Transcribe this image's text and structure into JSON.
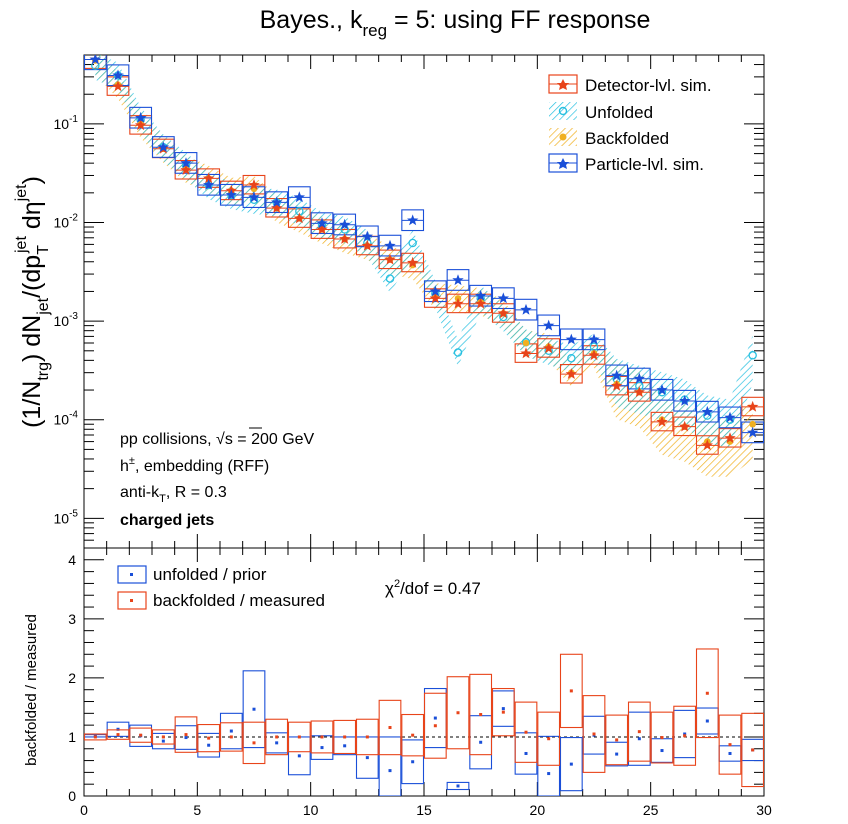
{
  "colors": {
    "detector": "#e8441a",
    "unfolded": "#28c0e0",
    "backfolded": "#f0b020",
    "particle": "#1a4fd8",
    "unf_ratio": "#1a4fd8",
    "back_ratio": "#e8441a"
  },
  "chart_data": [
    {
      "type": "scatter",
      "title": "Bayes., k_reg = 5: using FF response",
      "title_parts": {
        "pre": "Bayes., k",
        "sub": "reg",
        "post": " = 5: using FF response"
      },
      "ylabel": "(1/N_trg) dN_jet/(dp_T^jet dη^jet)",
      "xlim": [
        0,
        30
      ],
      "ylim": [
        5e-06,
        0.5
      ],
      "log_y": true,
      "y_tick_labels": [
        "10^-5",
        "10^-4",
        "10^-3",
        "10^-2",
        "10^-1"
      ],
      "legend": [
        {
          "label": "Detector-lvl. sim.",
          "key": "detector"
        },
        {
          "label": "Unfolded",
          "key": "unfolded"
        },
        {
          "label": "Backfolded",
          "key": "backfolded"
        },
        {
          "label": "Particle-lvl. sim.",
          "key": "particle"
        }
      ],
      "annotations": {
        "line1_pre": "pp collisions, ",
        "line1_sqrt": "√s",
        "line1_post": " = 200 GeV",
        "line2_pre": "h",
        "line2_sup": "±",
        "line2_post": ", embedding (RFF)",
        "line3_pre": "anti-k",
        "line3_sub": "T",
        "line3_post": ", R = 0.3",
        "line4": "charged jets"
      },
      "x": [
        0.5,
        1.5,
        2.5,
        3.5,
        4.5,
        5.5,
        6.5,
        7.5,
        8.5,
        9.5,
        10.5,
        11.5,
        12.5,
        13.5,
        14.5,
        15.5,
        16.5,
        17.5,
        18.5,
        19.5,
        20.5,
        21.5,
        22.5,
        23.5,
        24.5,
        25.5,
        26.5,
        27.5,
        28.5,
        29.5
      ],
      "series": [
        {
          "key": "detector",
          "values": [
            0.45,
            0.24,
            0.097,
            0.056,
            0.034,
            0.028,
            0.021,
            0.024,
            0.014,
            0.011,
            0.0085,
            0.0068,
            0.0058,
            0.0042,
            0.0039,
            0.0017,
            0.0015,
            0.0015,
            0.0012,
            0.00047,
            0.00053,
            0.00029,
            0.00045,
            0.00022,
            0.00019,
            9.5e-05,
            8.5e-05,
            5.5e-05,
            6.5e-05,
            0.000135
          ]
        },
        {
          "key": "unfolded",
          "values": [
            0.39,
            0.31,
            0.11,
            0.058,
            0.038,
            0.024,
            0.019,
            0.017,
            0.016,
            0.013,
            0.0095,
            0.0085,
            0.0062,
            0.0027,
            0.0062,
            0.0019,
            0.00048,
            0.0017,
            0.0011,
            0.00061,
            0.0005,
            0.00042,
            0.00055,
            0.00026,
            0.00022,
            0.00019,
            0.00016,
            0.00011,
            0.0001,
            0.00045
          ]
        },
        {
          "key": "backfolded",
          "values": [
            0.44,
            0.25,
            0.1,
            0.056,
            0.035,
            0.028,
            0.021,
            0.022,
            0.014,
            0.011,
            0.0085,
            0.0068,
            0.0058,
            0.0042,
            0.0037,
            0.0018,
            0.0017,
            0.0016,
            0.0012,
            0.0006,
            0.00055,
            0.0003,
            0.00047,
            0.00023,
            0.00019,
            0.0001,
            8.5e-05,
            6e-05,
            6e-05,
            9e-05
          ]
        },
        {
          "key": "particle",
          "values": [
            0.45,
            0.31,
            0.115,
            0.058,
            0.04,
            0.024,
            0.019,
            0.018,
            0.016,
            0.018,
            0.0098,
            0.0095,
            0.0072,
            0.0058,
            0.0105,
            0.002,
            0.0026,
            0.0018,
            0.0017,
            0.0013,
            0.0009,
            0.00065,
            0.00065,
            0.00028,
            0.00026,
            0.0002,
            0.000155,
            0.00012,
            0.000105,
            7.4e-05
          ]
        }
      ]
    },
    {
      "type": "scatter",
      "ylabel": "backfolded / measured",
      "xlim": [
        0,
        30
      ],
      "ylim": [
        0,
        4.2
      ],
      "x_tick_labels": [
        "0",
        "5",
        "10",
        "15",
        "20",
        "25",
        "30"
      ],
      "y_tick_labels": [
        "0",
        "1",
        "2",
        "3",
        "4"
      ],
      "chi2_pre": "χ",
      "chi2_sup": "2",
      "chi2_post": "/dof = 0.47",
      "legend": [
        {
          "label": "unfolded / prior",
          "key": "unf_ratio"
        },
        {
          "label": "backfolded / measured",
          "key": "back_ratio"
        }
      ],
      "x": [
        0.5,
        1.5,
        2.5,
        3.5,
        4.5,
        5.5,
        6.5,
        7.5,
        8.5,
        9.5,
        10.5,
        11.5,
        12.5,
        13.5,
        14.5,
        15.5,
        16.5,
        17.5,
        18.5,
        19.5,
        20.5,
        21.5,
        22.5,
        23.5,
        24.5,
        25.5,
        26.5,
        27.5,
        28.5,
        29.5
      ],
      "series": [
        {
          "key": "unf_ratio",
          "values": [
            1.02,
            1.13,
            1.02,
            0.93,
            0.99,
            0.86,
            1.1,
            1.47,
            0.9,
            0.68,
            0.82,
            0.85,
            0.65,
            0.43,
            0.58,
            1.32,
            0.17,
            0.91,
            1.48,
            0.72,
            0.38,
            0.54,
            1.03,
            0.71,
            0.97,
            0.77,
            1.05,
            1.27,
            0.72,
            0.78
          ],
          "err": [
            0.02,
            0.12,
            0.18,
            0.13,
            0.2,
            0.2,
            0.3,
            0.65,
            0.17,
            0.32,
            0.2,
            0.15,
            0.35,
            0.57,
            0.37,
            0.5,
            0.06,
            0.45,
            0.3,
            0.35,
            0.63,
            0.45,
            0.32,
            0.2,
            0.45,
            0.2,
            0.4,
            0.22,
            0.13,
            0.18
          ]
        },
        {
          "key": "back_ratio",
          "values": [
            1.0,
            1.04,
            1.03,
            1.0,
            1.04,
            0.98,
            1.0,
            0.9,
            1.0,
            1.0,
            1.0,
            1.0,
            1.0,
            1.16,
            1.03,
            1.19,
            1.41,
            1.38,
            1.42,
            1.08,
            0.97,
            1.78,
            1.05,
            0.95,
            1.09,
            0.99,
            1.02,
            1.74,
            0.87,
            0.78
          ],
          "err": [
            0.05,
            0.08,
            0.12,
            0.12,
            0.3,
            0.23,
            0.24,
            0.35,
            0.3,
            0.25,
            0.27,
            0.28,
            0.3,
            0.46,
            0.35,
            0.55,
            0.61,
            0.68,
            0.4,
            0.51,
            0.45,
            0.62,
            0.65,
            0.42,
            0.5,
            0.43,
            0.5,
            0.75,
            0.5,
            0.62
          ]
        }
      ]
    }
  ]
}
